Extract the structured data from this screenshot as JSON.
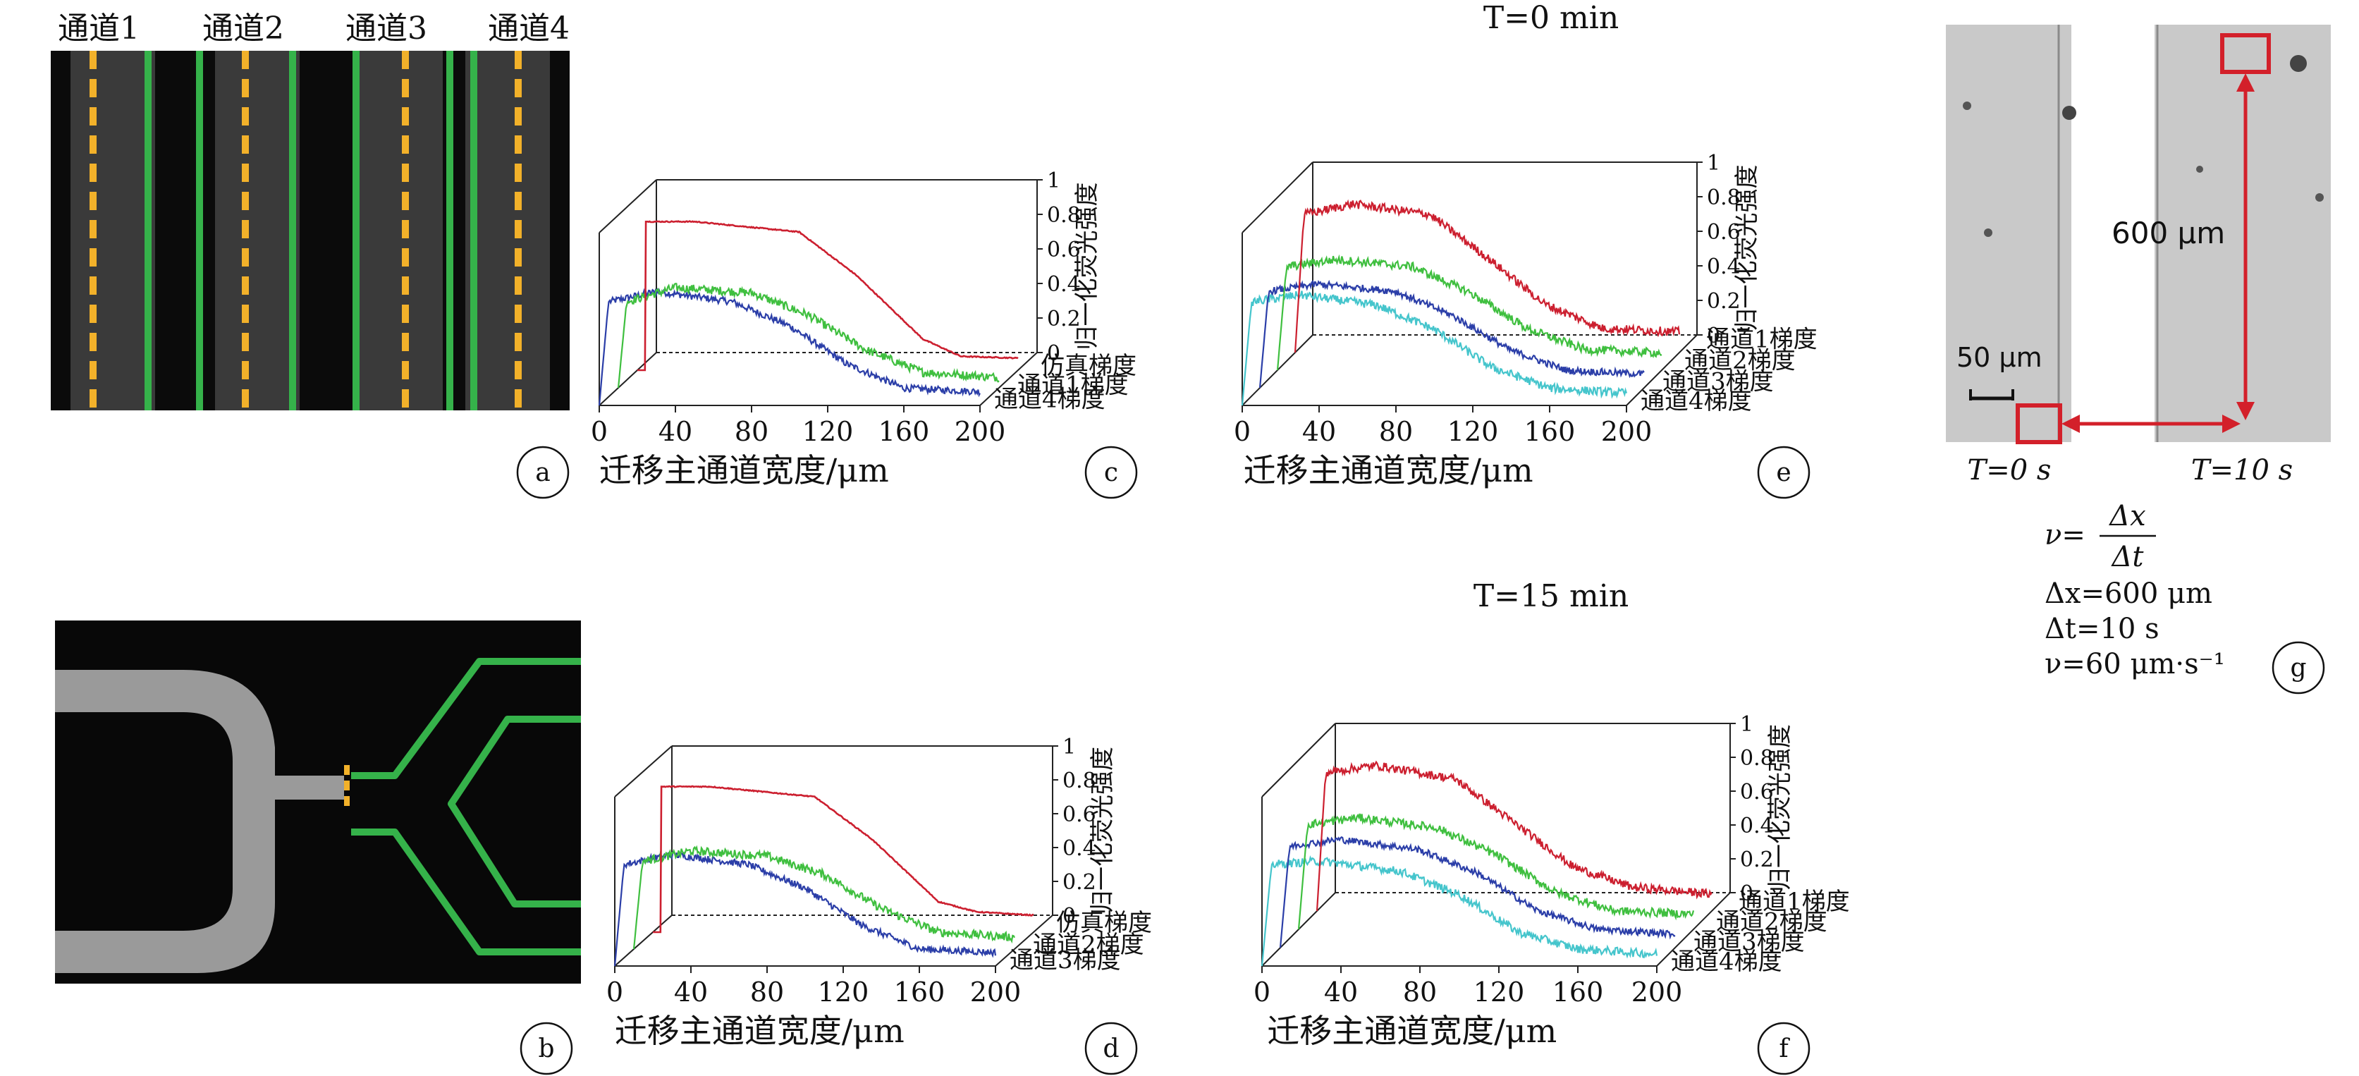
{
  "panel_a": {
    "labels": [
      "通道1",
      "通道2",
      "通道3",
      "通道4"
    ],
    "tag": "a"
  },
  "panel_b": {
    "tag": "b"
  },
  "panel_g": {
    "tag": "g",
    "distance_label": "600 μm",
    "scale_label": "50 μm",
    "time_left": "T=0 s",
    "time_right": "T=10 s",
    "formula_v": "ν=",
    "formula_num": "Δx",
    "formula_den": "Δt",
    "dx": "Δx=600 μm",
    "dt": "Δt=10 s",
    "v": "ν=60 μm·s⁻¹"
  },
  "colors": {
    "red": "#cc1f2f",
    "green": "#3fbf3f",
    "blue": "#2b3ea8",
    "cyan": "#45c5cc",
    "orange": "#f2b12a",
    "channel_green": "#35b24a"
  },
  "chart_data": [
    {
      "id": "c",
      "type": "line",
      "tag": "c",
      "title": "",
      "xlabel": "迁移主通道宽度/μm",
      "zlabel": "归一化荧光强度",
      "xlim": [
        0,
        200
      ],
      "xticks": [
        "0",
        "40",
        "80",
        "120",
        "160",
        "200"
      ],
      "zlim": [
        0,
        1
      ],
      "zticks": [
        "0",
        "0.2",
        "0.4",
        "0.6",
        "0.8",
        "1"
      ],
      "series": [
        {
          "name": "仿真梯度",
          "color": "#cc1f2f",
          "noise": 0.003,
          "x": [
            0,
            4,
            4.5,
            30,
            85,
            115,
            150,
            170,
            200
          ],
          "y": [
            0,
            0,
            0.86,
            0.86,
            0.8,
            0.55,
            0.18,
            0.08,
            0.07
          ]
        },
        {
          "name": "通道1梯度",
          "color": "#3fbf3f",
          "noise": 0.025,
          "x": [
            0,
            4,
            5,
            30,
            70,
            100,
            130,
            160,
            200
          ],
          "y": [
            0,
            0.46,
            0.5,
            0.58,
            0.55,
            0.42,
            0.22,
            0.09,
            0.06
          ]
        },
        {
          "name": "通道4梯度",
          "color": "#2b3ea8",
          "noise": 0.02,
          "x": [
            0,
            4,
            5,
            30,
            70,
            100,
            130,
            160,
            200
          ],
          "y": [
            0,
            0.5,
            0.6,
            0.66,
            0.6,
            0.46,
            0.24,
            0.1,
            0.08
          ]
        }
      ]
    },
    {
      "id": "d",
      "type": "line",
      "tag": "d",
      "title": "",
      "xlabel": "迁移主通道宽度/μm",
      "zlabel": "归一化荧光强度",
      "xlim": [
        0,
        200
      ],
      "xticks": [
        "0",
        "40",
        "80",
        "120",
        "160",
        "200"
      ],
      "zlim": [
        0,
        1
      ],
      "zticks": [
        "0",
        "0.2",
        "0.4",
        "0.6",
        "0.8",
        "1"
      ],
      "series": [
        {
          "name": "仿真梯度",
          "color": "#cc1f2f",
          "noise": 0.003,
          "x": [
            0,
            4,
            4.5,
            30,
            85,
            115,
            150,
            170,
            200
          ],
          "y": [
            0,
            0,
            0.86,
            0.86,
            0.8,
            0.55,
            0.18,
            0.12,
            0.1
          ]
        },
        {
          "name": "通道2梯度",
          "color": "#3fbf3f",
          "noise": 0.025,
          "x": [
            0,
            4,
            5,
            30,
            70,
            100,
            130,
            160,
            200
          ],
          "y": [
            0,
            0.46,
            0.52,
            0.58,
            0.55,
            0.44,
            0.24,
            0.1,
            0.07
          ]
        },
        {
          "name": "通道3梯度",
          "color": "#2b3ea8",
          "noise": 0.02,
          "x": [
            0,
            4,
            5,
            30,
            70,
            100,
            130,
            160,
            200
          ],
          "y": [
            0,
            0.5,
            0.6,
            0.66,
            0.6,
            0.46,
            0.24,
            0.1,
            0.08
          ]
        }
      ]
    },
    {
      "id": "e",
      "type": "line",
      "tag": "e",
      "title": "T=0 min",
      "xlabel": "迁移主通道宽度/μm",
      "zlabel": "归一化荧光强度",
      "xlim": [
        0,
        200
      ],
      "xticks": [
        "0",
        "40",
        "80",
        "120",
        "160",
        "200"
      ],
      "zlim": [
        0,
        1
      ],
      "zticks": [
        "0",
        "0.2",
        "0.4",
        "0.6",
        "0.8",
        "1"
      ],
      "series": [
        {
          "name": "通道1梯度",
          "color": "#cc1f2f",
          "noise": 0.025,
          "x": [
            0,
            4,
            5,
            30,
            70,
            100,
            130,
            160,
            200
          ],
          "y": [
            0,
            0.7,
            0.8,
            0.86,
            0.8,
            0.55,
            0.28,
            0.14,
            0.12
          ]
        },
        {
          "name": "通道2梯度",
          "color": "#3fbf3f",
          "noise": 0.025,
          "x": [
            0,
            4,
            5,
            30,
            70,
            100,
            130,
            160,
            200
          ],
          "y": [
            0,
            0.52,
            0.6,
            0.64,
            0.6,
            0.45,
            0.24,
            0.12,
            0.1
          ]
        },
        {
          "name": "通道3梯度",
          "color": "#2b3ea8",
          "noise": 0.02,
          "x": [
            0,
            4,
            5,
            30,
            70,
            100,
            130,
            160,
            200
          ],
          "y": [
            0,
            0.5,
            0.56,
            0.6,
            0.56,
            0.42,
            0.22,
            0.1,
            0.08
          ]
        },
        {
          "name": "通道4梯度",
          "color": "#45c5cc",
          "noise": 0.025,
          "x": [
            0,
            4,
            5,
            30,
            70,
            100,
            130,
            160,
            200
          ],
          "y": [
            0,
            0.5,
            0.6,
            0.64,
            0.58,
            0.44,
            0.22,
            0.1,
            0.07
          ]
        }
      ]
    },
    {
      "id": "f",
      "type": "line",
      "tag": "f",
      "title": "T=15 min",
      "xlabel": "迁移主通道宽度/μm",
      "zlabel": "归一化荧光强度",
      "xlim": [
        0,
        200
      ],
      "xticks": [
        "0",
        "40",
        "80",
        "120",
        "160",
        "200"
      ],
      "zlim": [
        0,
        1
      ],
      "zticks": [
        "0",
        "0.2",
        "0.4",
        "0.6",
        "0.8",
        "1"
      ],
      "series": [
        {
          "name": "通道1梯度",
          "color": "#cc1f2f",
          "noise": 0.025,
          "x": [
            0,
            4,
            5,
            30,
            70,
            100,
            130,
            160,
            200
          ],
          "y": [
            0,
            0.75,
            0.82,
            0.86,
            0.78,
            0.52,
            0.26,
            0.14,
            0.1
          ]
        },
        {
          "name": "通道2梯度",
          "color": "#3fbf3f",
          "noise": 0.025,
          "x": [
            0,
            4,
            5,
            30,
            70,
            100,
            130,
            160,
            200
          ],
          "y": [
            0,
            0.55,
            0.62,
            0.66,
            0.6,
            0.44,
            0.22,
            0.11,
            0.09
          ]
        },
        {
          "name": "通道3梯度",
          "color": "#2b3ea8",
          "noise": 0.02,
          "x": [
            0,
            4,
            5,
            30,
            70,
            100,
            130,
            160,
            200
          ],
          "y": [
            0,
            0.52,
            0.6,
            0.64,
            0.58,
            0.44,
            0.22,
            0.11,
            0.08
          ]
        },
        {
          "name": "通道4梯度",
          "color": "#45c5cc",
          "noise": 0.025,
          "x": [
            0,
            4,
            5,
            30,
            70,
            100,
            130,
            160,
            200
          ],
          "y": [
            0,
            0.5,
            0.6,
            0.62,
            0.56,
            0.42,
            0.2,
            0.1,
            0.07
          ]
        }
      ]
    }
  ]
}
